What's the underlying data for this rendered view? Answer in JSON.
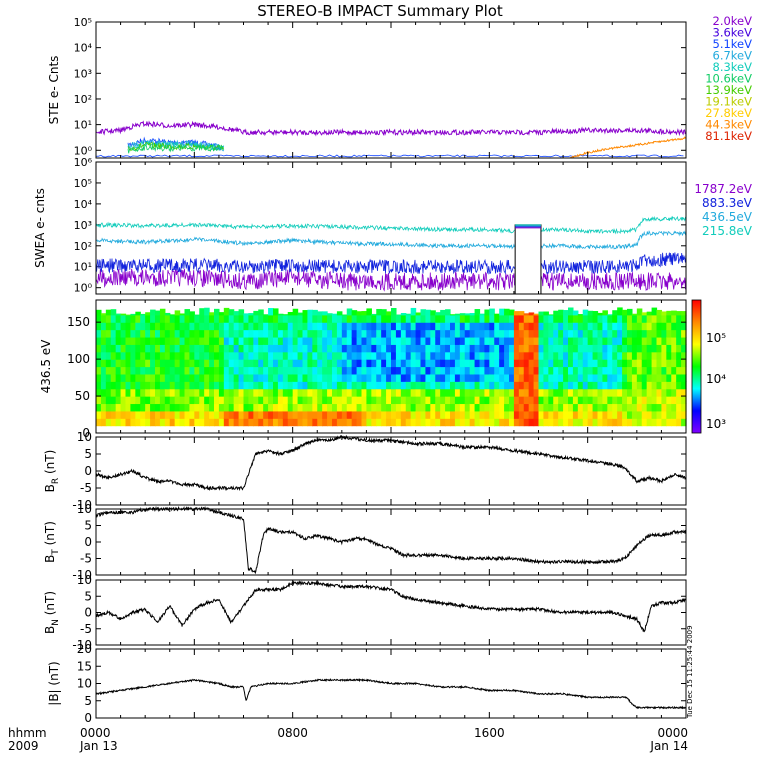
{
  "title": "STEREO-B IMPACT Summary Plot",
  "time_axis": {
    "unit_label": "hhmm",
    "year_label": "2009",
    "ticks": [
      {
        "hour": 0,
        "label": "0000",
        "date": "Jan 13"
      },
      {
        "hour": 8,
        "label": "0800",
        "date": ""
      },
      {
        "hour": 16,
        "label": "1600",
        "date": ""
      },
      {
        "hour": 24,
        "label": "0000",
        "date": "Jan 14"
      }
    ]
  },
  "timestamp": "Tue Dec 15 11:25:44 2009",
  "colorbar": {
    "labels": [
      "10⁵",
      "10⁴",
      "10³"
    ],
    "colors": [
      "#ff0000",
      "#ff8800",
      "#ffff00",
      "#00ff00",
      "#00ffff",
      "#0000ff",
      "#8000ff"
    ]
  },
  "chart_data": [
    {
      "type": "line",
      "ylabel": "STE e- Cnts",
      "yscale": "log",
      "ylim": [
        0.5,
        100000
      ],
      "ytick_labels": [
        "10⁵",
        "10⁴",
        "10³",
        "10²",
        "10¹",
        "10⁰"
      ],
      "legend": [
        {
          "label": "2.0keV",
          "color": "#8800cc"
        },
        {
          "label": "3.6keV",
          "color": "#4400dd"
        },
        {
          "label": "5.1keV",
          "color": "#1144ff"
        },
        {
          "label": "6.7keV",
          "color": "#22aadd"
        },
        {
          "label": "8.3keV",
          "color": "#11ccbb"
        },
        {
          "label": "10.6keV",
          "color": "#11cc66"
        },
        {
          "label": "13.9keV",
          "color": "#44cc00"
        },
        {
          "label": "19.1keV",
          "color": "#bbcc00"
        },
        {
          "label": "27.8keV",
          "color": "#ffcc00"
        },
        {
          "label": "44.3keV",
          "color": "#ff8800"
        },
        {
          "label": "81.1keV",
          "color": "#dd2200"
        }
      ],
      "series": [
        {
          "name": "2.0keV",
          "color": "#8800cc",
          "x": [
            0,
            1,
            2,
            3,
            4,
            5,
            6,
            8,
            10,
            12,
            14,
            16,
            18,
            20,
            22,
            24
          ],
          "y": [
            5,
            6,
            11,
            9,
            10,
            8,
            5,
            5,
            5,
            5,
            5,
            5,
            5,
            6,
            6,
            5
          ]
        },
        {
          "name": "44.3keV",
          "color": "#ff8800",
          "x": [
            19.3,
            20,
            21,
            22,
            23,
            24
          ],
          "y": [
            0.5,
            0.8,
            1.2,
            1.6,
            2.2,
            3
          ]
        }
      ]
    },
    {
      "type": "line",
      "ylabel": "SWEA e- cnts",
      "yscale": "log",
      "ylim": [
        0.5,
        1000000
      ],
      "ytick_labels": [
        "10⁶",
        "10⁵",
        "10⁴",
        "10³",
        "10²",
        "10¹",
        "10⁰"
      ],
      "legend": [
        {
          "label": "1787.2eV",
          "color": "#8800cc"
        },
        {
          "label": "883.3eV",
          "color": "#1122dd"
        },
        {
          "label": "436.5eV",
          "color": "#22aadd"
        },
        {
          "label": "215.8eV",
          "color": "#11ccbb"
        }
      ],
      "series": [
        {
          "name": "215.8eV",
          "color": "#11ccbb",
          "x": [
            0,
            2,
            4,
            6,
            8,
            10,
            12,
            14,
            16,
            17,
            18,
            18.2,
            19,
            20,
            21,
            21.5,
            22,
            22.3,
            24
          ],
          "y": [
            1000,
            900,
            1000,
            800,
            900,
            800,
            700,
            600,
            600,
            500,
            500,
            600,
            600,
            500,
            500,
            500,
            600,
            1800,
            2000
          ]
        },
        {
          "name": "436.5eV",
          "color": "#22aadd",
          "x": [
            0,
            2,
            4,
            6,
            8,
            10,
            12,
            14,
            16,
            17,
            18,
            18.2,
            19,
            20,
            21,
            21.5,
            22,
            22.3,
            24
          ],
          "y": [
            180,
            150,
            200,
            130,
            180,
            130,
            120,
            100,
            100,
            90,
            90,
            100,
            100,
            90,
            90,
            90,
            110,
            400,
            400
          ]
        },
        {
          "name": "883.3eV",
          "color": "#1122dd",
          "x": [
            0,
            2,
            4,
            6,
            8,
            10,
            12,
            14,
            16,
            17,
            18,
            21,
            22,
            22.3,
            24
          ],
          "y": [
            12,
            11,
            12,
            10,
            11,
            10,
            10,
            10,
            10,
            10,
            10,
            10,
            12,
            20,
            25
          ]
        },
        {
          "name": "1787.2eV",
          "color": "#8800cc",
          "x": [
            0,
            2,
            4,
            6,
            8,
            10,
            12,
            14,
            16,
            17,
            18,
            21,
            22,
            24
          ],
          "y": [
            3,
            3,
            3,
            2,
            3,
            2,
            2,
            2,
            2,
            2,
            2,
            2,
            2,
            2
          ]
        }
      ]
    },
    {
      "type": "heatmap",
      "ylabel": "436.5 eV",
      "ylim": [
        0,
        180
      ],
      "yticks": [
        0,
        50,
        100,
        150
      ]
    },
    {
      "type": "line",
      "ylabel": "B_R (nT)",
      "ylabel_main": "B",
      "ylabel_sub": "R",
      "ylabel_unit": "(nT)",
      "ylim": [
        -10,
        10
      ],
      "yticks": [
        -10,
        -5,
        0,
        5,
        10
      ],
      "x": [
        0,
        0.5,
        1,
        1.5,
        2,
        2.5,
        3,
        3.5,
        4,
        4.5,
        5,
        5.5,
        6,
        6.5,
        7,
        7.5,
        8,
        8.5,
        9,
        9.5,
        10,
        11,
        12,
        13,
        14,
        15,
        16,
        17,
        18,
        19,
        20,
        21,
        21.5,
        22,
        22.5,
        23,
        23.5,
        24
      ],
      "y": [
        -1,
        -2,
        -1,
        0,
        -2,
        -3,
        -3,
        -4,
        -4,
        -5,
        -5,
        -5,
        -5,
        5,
        6,
        5,
        6,
        8,
        9,
        9,
        10,
        9,
        9,
        8,
        8,
        7,
        7,
        6,
        5,
        4,
        3,
        2,
        1,
        -3,
        -2,
        -3,
        -1,
        -2
      ]
    },
    {
      "type": "line",
      "ylabel": "B_T (nT)",
      "ylabel_main": "B",
      "ylabel_sub": "T",
      "ylabel_unit": "(nT)",
      "ylim": [
        -10,
        10
      ],
      "yticks": [
        -10,
        -5,
        0,
        5,
        10
      ],
      "x": [
        0,
        0.5,
        1,
        1.5,
        2,
        2.5,
        3,
        3.5,
        4,
        4.5,
        5,
        5.5,
        6,
        6.2,
        6.5,
        6.8,
        7,
        7.5,
        8,
        8.5,
        9,
        9.5,
        10,
        10.5,
        11,
        11.5,
        12,
        12.5,
        13,
        14,
        15,
        16,
        17,
        18,
        19,
        20,
        21,
        21.5,
        22,
        22.5,
        23,
        23.5,
        24
      ],
      "y": [
        8,
        9,
        9,
        9,
        10,
        10,
        10,
        10,
        10,
        10,
        9,
        8,
        7,
        -8,
        -9,
        2,
        4,
        3,
        3,
        1,
        2,
        1,
        0,
        1,
        1,
        -1,
        -2,
        -4,
        -4,
        -4,
        -5,
        -5,
        -5,
        -6,
        -6,
        -6,
        -6,
        -5,
        -1,
        2,
        2,
        3,
        3
      ]
    },
    {
      "type": "line",
      "ylabel": "B_N (nT)",
      "ylabel_main": "B",
      "ylabel_sub": "N",
      "ylabel_unit": "(nT)",
      "ylim": [
        -10,
        10
      ],
      "yticks": [
        -10,
        -5,
        0,
        5,
        10
      ],
      "x": [
        0,
        0.5,
        1,
        1.5,
        2,
        2.5,
        3,
        3.5,
        4,
        4.5,
        5,
        5.5,
        6,
        6.5,
        7,
        7.5,
        8,
        9,
        10,
        11,
        12,
        12.5,
        13,
        14,
        15,
        16,
        17,
        18,
        19,
        20,
        21,
        21.5,
        22,
        22.3,
        22.6,
        23,
        23.5,
        24
      ],
      "y": [
        -1,
        0,
        -2,
        0,
        1,
        -3,
        2,
        -4,
        1,
        3,
        4,
        -3,
        2,
        7,
        7,
        7,
        9,
        9,
        8,
        8,
        7,
        5,
        4,
        3,
        2,
        1,
        1,
        1,
        0,
        0,
        0,
        -1,
        -2,
        -6,
        2,
        3,
        3,
        4
      ]
    },
    {
      "type": "line",
      "ylabel": "|B| (nT)",
      "ylim": [
        0,
        20
      ],
      "yticks": [
        0,
        5,
        10,
        15,
        20
      ],
      "x": [
        0,
        1,
        2,
        3,
        4,
        5,
        5.5,
        6,
        6.1,
        6.3,
        7,
        8,
        9,
        10,
        11,
        12,
        13,
        14,
        15,
        16,
        17,
        18,
        19,
        20,
        21,
        21.6,
        21.8,
        22,
        23,
        24
      ],
      "y": [
        7,
        8,
        9,
        10,
        11,
        10,
        9,
        9,
        5,
        9,
        10,
        10,
        11,
        11,
        11,
        10,
        10,
        9,
        9,
        8,
        8,
        7,
        7,
        6,
        6,
        6,
        4,
        3,
        3,
        3
      ]
    }
  ]
}
